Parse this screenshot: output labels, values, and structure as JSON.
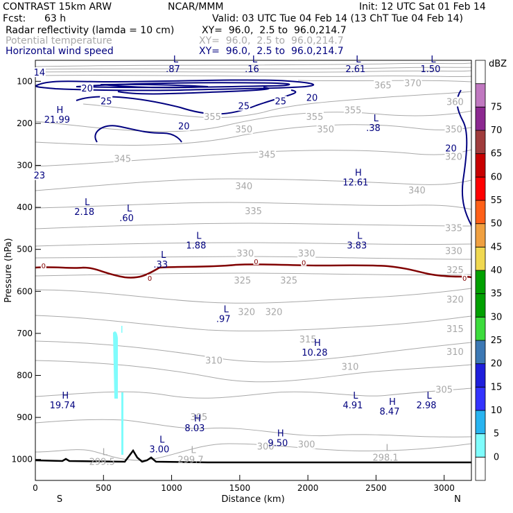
{
  "header": {
    "model": "CONTRAST 15km ARW",
    "org": "NCAR/MMM",
    "init": "Init: 12 UTC Sat 01 Feb 14",
    "fcst_label": "Fcst:",
    "fcst_value": "63 h",
    "valid": "Valid: 03 UTC Tue 04 Feb 14 (13 ChT Tue 04 Feb 14)",
    "fields": [
      {
        "name": "Radar reflectivity (lamda = 10 cm)",
        "xy": "XY=  96.0,  2.5 to  96.0,214.7",
        "color": "#000000"
      },
      {
        "name": "Potential temperature",
        "xy": "XY=  96.0,  2.5 to  96.0,214.7",
        "color": "#a8a8a8"
      },
      {
        "name": "Horizontal wind speed",
        "xy": "XY=  96.0,  2.5 to  96.0,214.7",
        "color": "#00007f"
      }
    ]
  },
  "chart_data": {
    "type": "cross-section",
    "xlabel": "Distance (km)",
    "ylabel": "Pressure (hPa)",
    "xlim": [
      0,
      3200
    ],
    "ylim": [
      1050,
      50
    ],
    "x_ticks": [
      0,
      500,
      1000,
      1500,
      2000,
      2500,
      3000
    ],
    "y_ticks": [
      100,
      200,
      300,
      400,
      500,
      600,
      700,
      800,
      900,
      1000
    ],
    "x_end_labels": {
      "left": "S",
      "right": "N"
    },
    "colorbar": {
      "unit": "dBZ",
      "levels": [
        0,
        5,
        10,
        15,
        20,
        25,
        30,
        35,
        40,
        45,
        50,
        55,
        60,
        65,
        70,
        75
      ],
      "colors": [
        "#ffffff",
        "#7ffcfc",
        "#28b4f0",
        "#3333ff",
        "#1e1edc",
        "#3c78b4",
        "#3cdc3c",
        "#00a000",
        "#00a000",
        "#f0d850",
        "#f0a040",
        "#ff6018",
        "#ff0000",
        "#c80000",
        "#a03c3c",
        "#8c2890",
        "#c078c0",
        "#ffffff"
      ]
    },
    "theta_labels": [
      {
        "x": 1300,
        "p": 185,
        "t": "355"
      },
      {
        "x": 2050,
        "p": 185,
        "t": "355"
      },
      {
        "x": 2330,
        "p": 170,
        "t": "355"
      },
      {
        "x": 2550,
        "p": 110,
        "t": "365"
      },
      {
        "x": 2770,
        "p": 105,
        "t": "370"
      },
      {
        "x": 3080,
        "p": 150,
        "t": "360"
      },
      {
        "x": 1530,
        "p": 215,
        "t": "350"
      },
      {
        "x": 2130,
        "p": 215,
        "t": "350"
      },
      {
        "x": 3070,
        "p": 215,
        "t": "350"
      },
      {
        "x": 640,
        "p": 285,
        "t": "345"
      },
      {
        "x": 1700,
        "p": 275,
        "t": "345"
      },
      {
        "x": 3070,
        "p": 280,
        "t": "320"
      },
      {
        "x": 1530,
        "p": 350,
        "t": "340"
      },
      {
        "x": 2800,
        "p": 360,
        "t": "340"
      },
      {
        "x": 1600,
        "p": 410,
        "t": "335"
      },
      {
        "x": 3070,
        "p": 450,
        "t": "335"
      },
      {
        "x": 1540,
        "p": 510,
        "t": "330"
      },
      {
        "x": 1990,
        "p": 510,
        "t": "330"
      },
      {
        "x": 3070,
        "p": 505,
        "t": "330"
      },
      {
        "x": 1520,
        "p": 575,
        "t": "325"
      },
      {
        "x": 1860,
        "p": 575,
        "t": "325"
      },
      {
        "x": 3080,
        "p": 550,
        "t": "325"
      },
      {
        "x": 1550,
        "p": 650,
        "t": "320"
      },
      {
        "x": 1750,
        "p": 650,
        "t": "320"
      },
      {
        "x": 3080,
        "p": 620,
        "t": "320"
      },
      {
        "x": 2000,
        "p": 715,
        "t": "315"
      },
      {
        "x": 3080,
        "p": 690,
        "t": "315"
      },
      {
        "x": 1310,
        "p": 765,
        "t": "310"
      },
      {
        "x": 2310,
        "p": 780,
        "t": "310"
      },
      {
        "x": 3080,
        "p": 745,
        "t": "310"
      },
      {
        "x": 1200,
        "p": 900,
        "t": "305"
      },
      {
        "x": 3000,
        "p": 835,
        "t": "305"
      },
      {
        "x": 1690,
        "p": 970,
        "t": "300"
      },
      {
        "x": 1990,
        "p": 965,
        "t": "300"
      }
    ],
    "wind_labels": [
      {
        "x": 380,
        "p": 118,
        "t": "20"
      },
      {
        "x": 520,
        "p": 148,
        "t": "25"
      },
      {
        "x": 1530,
        "p": 160,
        "t": "25"
      },
      {
        "x": 1800,
        "p": 148,
        "t": "25"
      },
      {
        "x": 2030,
        "p": 140,
        "t": "20"
      },
      {
        "x": 1090,
        "p": 208,
        "t": "20"
      },
      {
        "x": 3050,
        "p": 260,
        "t": "20"
      },
      {
        "x": 30,
        "p": 80,
        "t": "14"
      },
      {
        "x": 30,
        "p": 325,
        "t": "23"
      }
    ],
    "hl_markers": [
      {
        "x": 1030,
        "p": 55,
        "t": "L",
        "v": ".87",
        "c": "#00007f"
      },
      {
        "x": 1610,
        "p": 55,
        "t": "L",
        "v": ".16",
        "c": "#00007f"
      },
      {
        "x": 2370,
        "p": 55,
        "t": "L",
        "v": "2.61",
        "c": "#00007f"
      },
      {
        "x": 2920,
        "p": 55,
        "t": "L",
        "v": "1.50",
        "c": "#00007f"
      },
      {
        "x": 180,
        "p": 175,
        "t": "H",
        "v": "21.99",
        "c": "#00007f"
      },
      {
        "x": 2500,
        "p": 195,
        "t": "L",
        "v": ".38",
        "c": "#00007f"
      },
      {
        "x": 2370,
        "p": 325,
        "t": "H",
        "v": "12.61",
        "c": "#00007f"
      },
      {
        "x": 380,
        "p": 395,
        "t": "L",
        "v": "2.18",
        "c": "#00007f"
      },
      {
        "x": 690,
        "p": 410,
        "t": "L",
        "v": ".60",
        "c": "#00007f"
      },
      {
        "x": 1200,
        "p": 475,
        "t": "L",
        "v": "1.88",
        "c": "#00007f"
      },
      {
        "x": 2380,
        "p": 475,
        "t": "L",
        "v": "3.83",
        "c": "#00007f"
      },
      {
        "x": 940,
        "p": 520,
        "t": "L",
        "v": ".33",
        "c": "#00007f"
      },
      {
        "x": 1400,
        "p": 650,
        "t": "L",
        "v": ".97",
        "c": "#00007f"
      },
      {
        "x": 2070,
        "p": 730,
        "t": "H",
        "v": "10.28",
        "c": "#00007f"
      },
      {
        "x": 220,
        "p": 855,
        "t": "H",
        "v": "19.74",
        "c": "#00007f"
      },
      {
        "x": 2350,
        "p": 855,
        "t": "L",
        "v": "4.91",
        "c": "#00007f"
      },
      {
        "x": 2890,
        "p": 855,
        "t": "L",
        "v": "2.98",
        "c": "#00007f"
      },
      {
        "x": 2620,
        "p": 870,
        "t": "H",
        "v": "8.47",
        "c": "#00007f"
      },
      {
        "x": 1190,
        "p": 910,
        "t": "H",
        "v": "8.03",
        "c": "#00007f"
      },
      {
        "x": 1800,
        "p": 945,
        "t": "H",
        "v": "9.50",
        "c": "#00007f"
      },
      {
        "x": 930,
        "p": 960,
        "t": "L",
        "v": "3.00",
        "c": "#00007f"
      },
      {
        "x": 510,
        "p": 990,
        "t": "L",
        "v": "299.5",
        "c": "#a8a8a8"
      },
      {
        "x": 1160,
        "p": 985,
        "t": "L",
        "v": "299.7",
        "c": "#a8a8a8"
      },
      {
        "x": 2590,
        "p": 980,
        "t": "L",
        "v": "298.1",
        "c": "#a8a8a8"
      }
    ],
    "zero_isotherm_labels": [
      {
        "x": 60,
        "p": 540,
        "t": "0"
      },
      {
        "x": 840,
        "p": 570,
        "t": "0"
      },
      {
        "x": 1620,
        "p": 530,
        "t": "0"
      },
      {
        "x": 1970,
        "p": 533,
        "t": "0"
      },
      {
        "x": 3150,
        "p": 570,
        "t": "0"
      }
    ]
  }
}
